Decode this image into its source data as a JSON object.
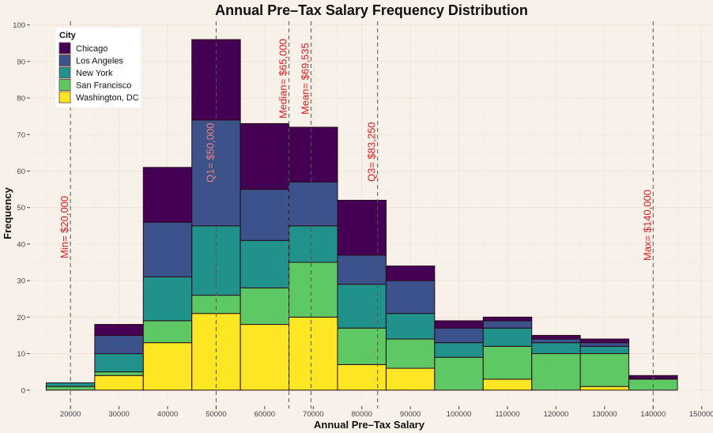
{
  "chart_data": {
    "type": "bar",
    "subtype": "stacked-histogram",
    "title": "Annual Pre–Tax Salary Frequency Distribution",
    "xlabel": "Annual Pre–Tax Salary",
    "ylabel": "Frequency",
    "xlim": [
      12000,
      152000
    ],
    "ylim": [
      -2,
      101
    ],
    "bin_width": 10000,
    "x_ticks": [
      20000,
      30000,
      40000,
      50000,
      60000,
      70000,
      80000,
      90000,
      100000,
      110000,
      120000,
      130000,
      140000,
      150000
    ],
    "y_ticks": [
      0,
      10,
      20,
      30,
      40,
      50,
      60,
      70,
      80,
      90,
      100
    ],
    "grid": true,
    "categories": [
      20000,
      30000,
      40000,
      50000,
      60000,
      70000,
      80000,
      90000,
      100000,
      110000,
      120000,
      130000,
      140000
    ],
    "series": [
      {
        "name": "Washington, DC",
        "color": "#fde725",
        "values": [
          0,
          4,
          13,
          21,
          18,
          20,
          7,
          6,
          0,
          3,
          0,
          1,
          0
        ]
      },
      {
        "name": "San Francisco",
        "color": "#5ec962",
        "values": [
          1,
          1,
          6,
          5,
          10,
          15,
          10,
          8,
          9,
          9,
          10,
          9,
          3
        ]
      },
      {
        "name": "New York",
        "color": "#21918c",
        "values": [
          1,
          5,
          12,
          19,
          13,
          10,
          12,
          7,
          4,
          5,
          3,
          2,
          0
        ]
      },
      {
        "name": "Los Angeles",
        "color": "#3b528b",
        "values": [
          0,
          5,
          15,
          29,
          14,
          12,
          8,
          9,
          4,
          2,
          1,
          1,
          0
        ]
      },
      {
        "name": "Chicago",
        "color": "#440154",
        "values": [
          0,
          3,
          15,
          22,
          18,
          15,
          15,
          4,
          2,
          1,
          1,
          1,
          1
        ]
      }
    ],
    "legend": {
      "title": "City",
      "position": "top-left",
      "entries": [
        "Chicago",
        "Los Angeles",
        "New York",
        "San Francisco",
        "Washington, DC"
      ]
    },
    "reference_lines": [
      {
        "name": "min",
        "x": 20000,
        "label": "Min= $20,000"
      },
      {
        "name": "q1",
        "x": 50000,
        "label": "Q1= $50,000"
      },
      {
        "name": "median",
        "x": 65000,
        "label": "Median= $65,000"
      },
      {
        "name": "mean",
        "x": 69535,
        "label": "Mean= $69,535"
      },
      {
        "name": "q3",
        "x": 83250,
        "label": "Q3= $83,250"
      },
      {
        "name": "max",
        "x": 140000,
        "label": "Max= $140,000"
      }
    ]
  }
}
